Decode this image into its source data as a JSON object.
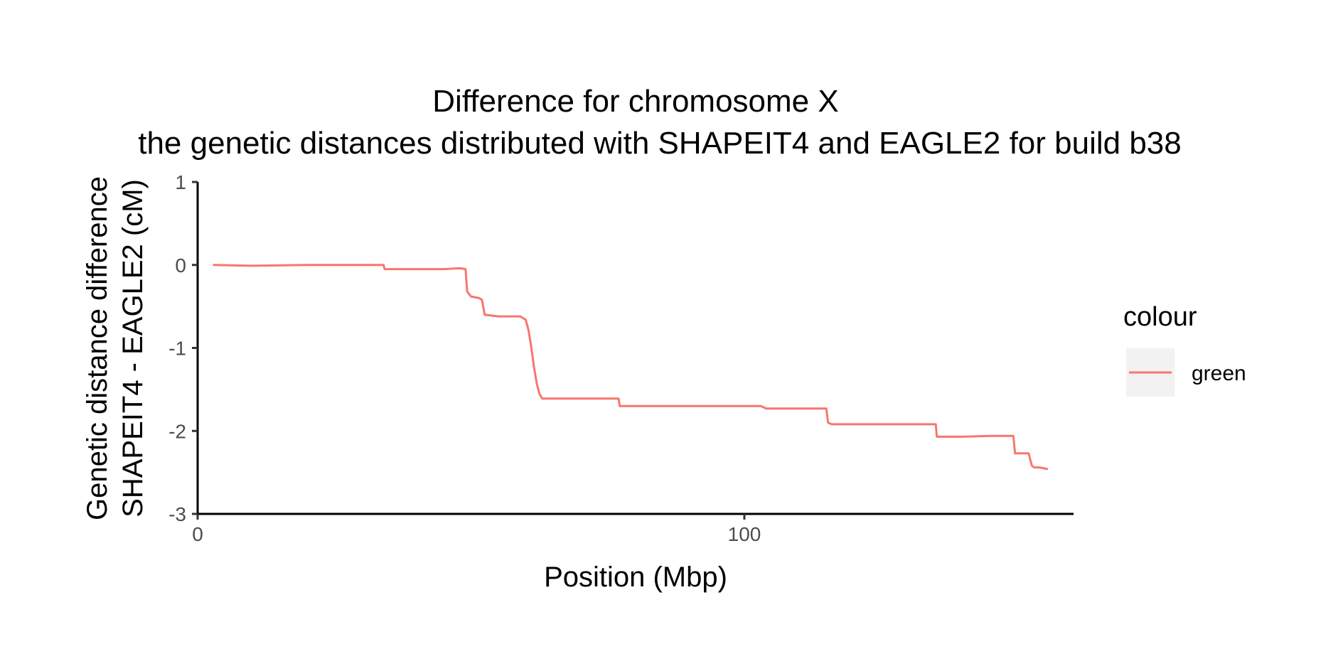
{
  "chart_data": {
    "type": "line",
    "title": "Difference for chromosome X",
    "subtitle": "the genetic distances distributed with SHAPEIT4 and EAGLE2 for build b38",
    "xlabel": "Position (Mbp)",
    "ylabel_line1": "Genetic distance difference",
    "ylabel_line2": "SHAPEIT4 - EAGLE2 (cM)",
    "xlim": [
      0,
      160
    ],
    "ylim": [
      -3,
      1
    ],
    "x_ticks": [
      0,
      100
    ],
    "x_tick_labels": [
      "0",
      "100"
    ],
    "y_ticks": [
      1,
      0,
      -1,
      -2,
      -3
    ],
    "y_tick_labels": [
      "1",
      "0",
      "-1",
      "-2",
      "-3"
    ],
    "grid": false,
    "legend": {
      "title": "colour",
      "placement": "right",
      "entries": [
        {
          "label": "green",
          "color": "#F8766D"
        }
      ]
    },
    "series": [
      {
        "color": "#F8766D",
        "x": [
          2.8,
          10,
          20,
          34,
          34.2,
          40,
          45,
          48,
          49,
          49.3,
          50,
          51.5,
          52,
          52.5,
          55,
          58,
          59,
          60,
          60.5,
          61,
          61.5,
          62,
          62.5,
          63,
          65,
          70,
          77,
          77.2,
          90,
          103,
          104,
          115,
          115.3,
          116,
          120,
          125,
          130,
          135,
          135.2,
          140,
          145,
          149.2,
          149.5,
          152,
          152.3,
          152.6,
          153,
          154,
          155.5
        ],
        "y": [
          0,
          -0.01,
          0,
          0,
          -0.05,
          -0.05,
          -0.05,
          -0.04,
          -0.05,
          -0.32,
          -0.38,
          -0.4,
          -0.42,
          -0.6,
          -0.62,
          -0.62,
          -0.62,
          -0.66,
          -0.78,
          -0.98,
          -1.22,
          -1.42,
          -1.55,
          -1.61,
          -1.61,
          -1.61,
          -1.61,
          -1.7,
          -1.7,
          -1.7,
          -1.73,
          -1.73,
          -1.9,
          -1.92,
          -1.92,
          -1.92,
          -1.92,
          -1.92,
          -2.07,
          -2.07,
          -2.06,
          -2.06,
          -2.27,
          -2.27,
          -2.35,
          -2.42,
          -2.44,
          -2.44,
          -2.46
        ]
      }
    ]
  }
}
